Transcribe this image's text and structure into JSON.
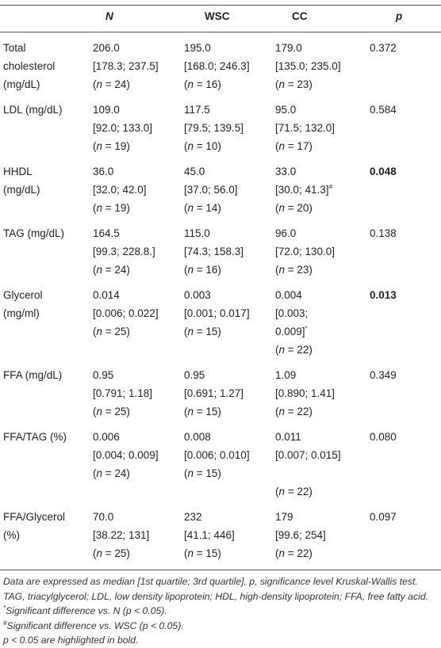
{
  "table": {
    "header": [
      "N",
      "WSC",
      "CC",
      "p"
    ],
    "rows": [
      {
        "label": [
          "Total",
          "cholesterol",
          "(mg/dL)"
        ],
        "cells": [
          {
            "lines": [
              "206.0",
              "[178.3; 237.5]",
              "(n = 24)"
            ]
          },
          {
            "lines": [
              "195.0",
              "[168.0; 246.3]",
              "(n = 16)"
            ]
          },
          {
            "lines": [
              "179.0",
              "[135.0; 235.0]",
              "(n = 23)"
            ]
          },
          {
            "lines": [
              "0.372"
            ]
          }
        ]
      },
      {
        "label": [
          "LDL (mg/dL)"
        ],
        "cells": [
          {
            "lines": [
              "109.0",
              "[92.0; 133.0]",
              "(n = 19)"
            ]
          },
          {
            "lines": [
              "117.5",
              "[79.5; 139.5]",
              "(n = 10)"
            ]
          },
          {
            "lines": [
              "95.0",
              "[71.5; 132.0]",
              "(n = 17)"
            ]
          },
          {
            "lines": [
              "0.584"
            ]
          }
        ]
      },
      {
        "label": [
          "HHDL",
          "(mg/dL)"
        ],
        "cells": [
          {
            "lines": [
              "36.0",
              "[32.0; 42.0]",
              "(n = 19)"
            ]
          },
          {
            "lines": [
              "45.0",
              "[37.0; 56.0]",
              "(n = 14)"
            ]
          },
          {
            "lines": [
              "33.0",
              {
                "text": "[30.0; 41.3]",
                "sup": "#"
              },
              "(n = 20)"
            ]
          },
          {
            "lines": [
              "0.048"
            ],
            "bold": true
          }
        ]
      },
      {
        "label": [
          "TAG (mg/dL)"
        ],
        "cells": [
          {
            "lines": [
              "164.5",
              "[99.3; 228.8.]",
              "(n = 24)"
            ]
          },
          {
            "lines": [
              "115.0",
              "[74.3; 158.3]",
              "(n = 16)"
            ]
          },
          {
            "lines": [
              "96.0",
              "[72.0; 130.0]",
              "(n = 23)"
            ]
          },
          {
            "lines": [
              "0.138"
            ]
          }
        ]
      },
      {
        "label": [
          "Glycerol",
          "(mg/ml)"
        ],
        "cells": [
          {
            "lines": [
              "0.014",
              "[0.006; 0.022]",
              "(n = 25)"
            ]
          },
          {
            "lines": [
              "0.003",
              "[0.001; 0.017]",
              "(n = 15)"
            ]
          },
          {
            "lines": [
              "0.004",
              "[0.003;",
              {
                "text": "0.009]",
                "sup": "*"
              },
              "(n = 22)"
            ]
          },
          {
            "lines": [
              "0.013"
            ],
            "bold": true
          }
        ]
      },
      {
        "label": [
          "FFA (mg/dL)"
        ],
        "cells": [
          {
            "lines": [
              "0.95",
              "[0.791; 1.18]",
              "(n = 25)"
            ]
          },
          {
            "lines": [
              "0.95",
              "[0.691; 1.27]",
              "(n = 15)"
            ]
          },
          {
            "lines": [
              "1.09",
              "[0.890; 1.41]",
              "(n = 22)"
            ]
          },
          {
            "lines": [
              "0.349"
            ]
          }
        ]
      },
      {
        "label": [
          "FFA/TAG (%)"
        ],
        "cells": [
          {
            "lines": [
              "0.006",
              "[0.004; 0.009]",
              "(n = 24)"
            ]
          },
          {
            "lines": [
              "0.008",
              "[0.006; 0.010]",
              "(n = 15)"
            ]
          },
          {
            "lines": [
              "0.011",
              "[0.007; 0.015]",
              null,
              "(n = 22)"
            ]
          },
          {
            "lines": [
              "0.080"
            ]
          }
        ]
      },
      {
        "label": [
          "FFA/Glycerol",
          "(%)"
        ],
        "cells": [
          {
            "lines": [
              "70.0",
              "[38.22; 131]",
              "(n = 25)"
            ]
          },
          {
            "lines": [
              "232",
              "[41.1; 446]",
              "(n = 15)"
            ]
          },
          {
            "lines": [
              "179",
              "[99.6; 254]",
              "(n = 22)"
            ]
          },
          {
            "lines": [
              "0.097"
            ]
          }
        ]
      }
    ]
  },
  "footnotes": [
    {
      "text": "Data are expressed as median [1st quartile; 3rd quartile], p, significance level Kruskal-Wallis test."
    },
    {
      "text": "TAG, triacylglycerol; LDL, low density lipoprotein; HDL, high-density lipoprotein; FFA, free fatty acid."
    },
    {
      "sup": "*",
      "text": "Significant difference vs. N (p < 0.05)."
    },
    {
      "sup": "#",
      "text": "Significant difference vs. WSC (p < 0.05)."
    },
    {
      "text": "p < 0.05 are highlighted in bold."
    }
  ]
}
